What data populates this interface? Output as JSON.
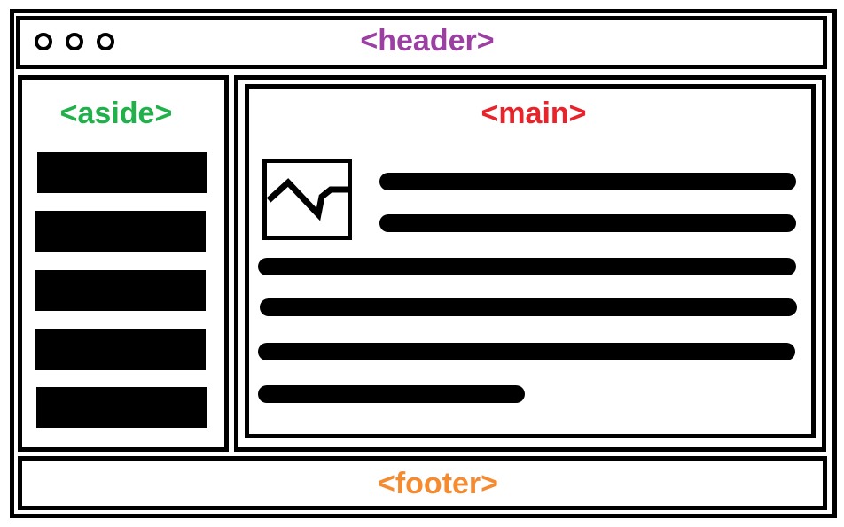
{
  "header": {
    "label": "<header>",
    "color": "#9b3fa3",
    "window_controls": [
      "circle-icon",
      "circle-icon",
      "circle-icon"
    ]
  },
  "aside": {
    "label": "<aside>",
    "color": "#20b14a",
    "item_count": 5
  },
  "main": {
    "label": "<main>",
    "color": "#e8232a",
    "media_icon": "image-placeholder-icon",
    "text_line_count": 6
  },
  "footer": {
    "label": "<footer>",
    "color": "#f58a2f"
  }
}
